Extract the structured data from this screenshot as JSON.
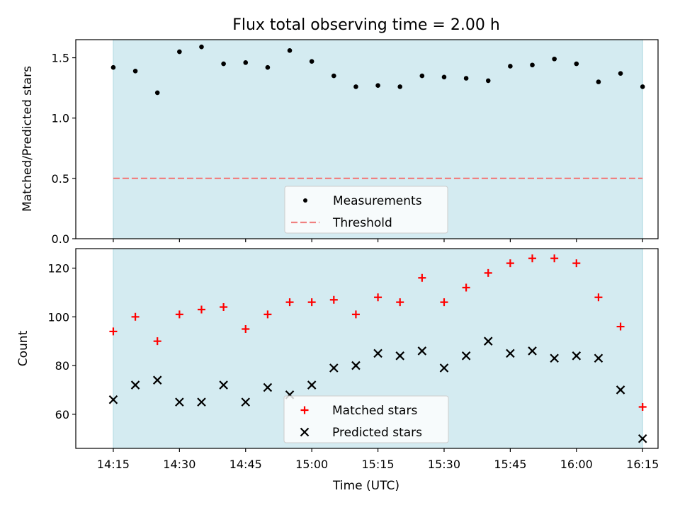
{
  "chart_data": [
    {
      "type": "scatter",
      "title": "Flux total observing time = 2.00 h",
      "xlabel": "",
      "ylabel": "Matched/Predicted stars",
      "xlim": [
        -8.5,
        123.5
      ],
      "ylim": [
        0,
        1.65
      ],
      "yticks": [
        0.0,
        0.5,
        1.0,
        1.5
      ],
      "ytick_labels": [
        "0.0",
        "0.5",
        "1.0",
        "1.5"
      ],
      "shaded_span": [
        0,
        120
      ],
      "series": [
        {
          "name": "Measurements",
          "marker": "dot",
          "color": "#000000",
          "x": [
            0,
            5,
            10,
            15,
            20,
            25,
            30,
            35,
            40,
            45,
            50,
            55,
            60,
            65,
            70,
            75,
            80,
            85,
            90,
            95,
            100,
            105,
            110,
            115,
            120
          ],
          "values": [
            1.42,
            1.39,
            1.21,
            1.55,
            1.59,
            1.45,
            1.46,
            1.42,
            1.56,
            1.47,
            1.35,
            1.26,
            1.27,
            1.26,
            1.35,
            1.34,
            1.33,
            1.31,
            1.43,
            1.44,
            1.49,
            1.45,
            1.3,
            1.37,
            1.26
          ]
        },
        {
          "name": "Threshold",
          "marker": "dashed-line",
          "color": "#f08080",
          "x": [
            0,
            120
          ],
          "values": [
            0.5,
            0.5
          ]
        }
      ],
      "legend": {
        "position": "lower-center",
        "entries": [
          "Measurements",
          "Threshold"
        ]
      }
    },
    {
      "type": "scatter",
      "title": "",
      "xlabel": "Time (UTC)",
      "ylabel": "Count",
      "xlim": [
        -8.5,
        123.5
      ],
      "ylim": [
        46,
        128
      ],
      "yticks": [
        60,
        80,
        100,
        120
      ],
      "ytick_labels": [
        "60",
        "80",
        "100",
        "120"
      ],
      "xticks": [
        0,
        15,
        30,
        45,
        60,
        75,
        90,
        105,
        120
      ],
      "xtick_labels": [
        "14:15",
        "14:30",
        "14:45",
        "15:00",
        "15:15",
        "15:30",
        "15:45",
        "16:00",
        "16:15"
      ],
      "shaded_span": [
        0,
        120
      ],
      "series": [
        {
          "name": "Matched stars",
          "marker": "plus",
          "color": "#ff0000",
          "x": [
            0,
            5,
            10,
            15,
            20,
            25,
            30,
            35,
            40,
            45,
            50,
            55,
            60,
            65,
            70,
            75,
            80,
            85,
            90,
            95,
            100,
            105,
            110,
            115,
            120
          ],
          "values": [
            94,
            100,
            90,
            101,
            103,
            104,
            95,
            101,
            106,
            106,
            107,
            101,
            108,
            106,
            116,
            106,
            112,
            118,
            122,
            124,
            124,
            122,
            108,
            96,
            63
          ]
        },
        {
          "name": "Predicted stars",
          "marker": "x",
          "color": "#000000",
          "x": [
            0,
            5,
            10,
            15,
            20,
            25,
            30,
            35,
            40,
            45,
            50,
            55,
            60,
            65,
            70,
            75,
            80,
            85,
            90,
            95,
            100,
            105,
            110,
            115,
            120
          ],
          "values": [
            66,
            72,
            74,
            65,
            65,
            72,
            65,
            71,
            68,
            72,
            79,
            80,
            85,
            84,
            86,
            79,
            84,
            90,
            85,
            86,
            83,
            84,
            83,
            70,
            50
          ]
        }
      ],
      "legend": {
        "position": "lower-center",
        "entries": [
          "Matched stars",
          "Predicted stars"
        ]
      }
    }
  ],
  "colors": {
    "shade": "#d4ebf1",
    "shade_edge": "#b0d8e2",
    "threshold": "#f08080",
    "matched": "#ff0000",
    "predicted": "#000000"
  }
}
